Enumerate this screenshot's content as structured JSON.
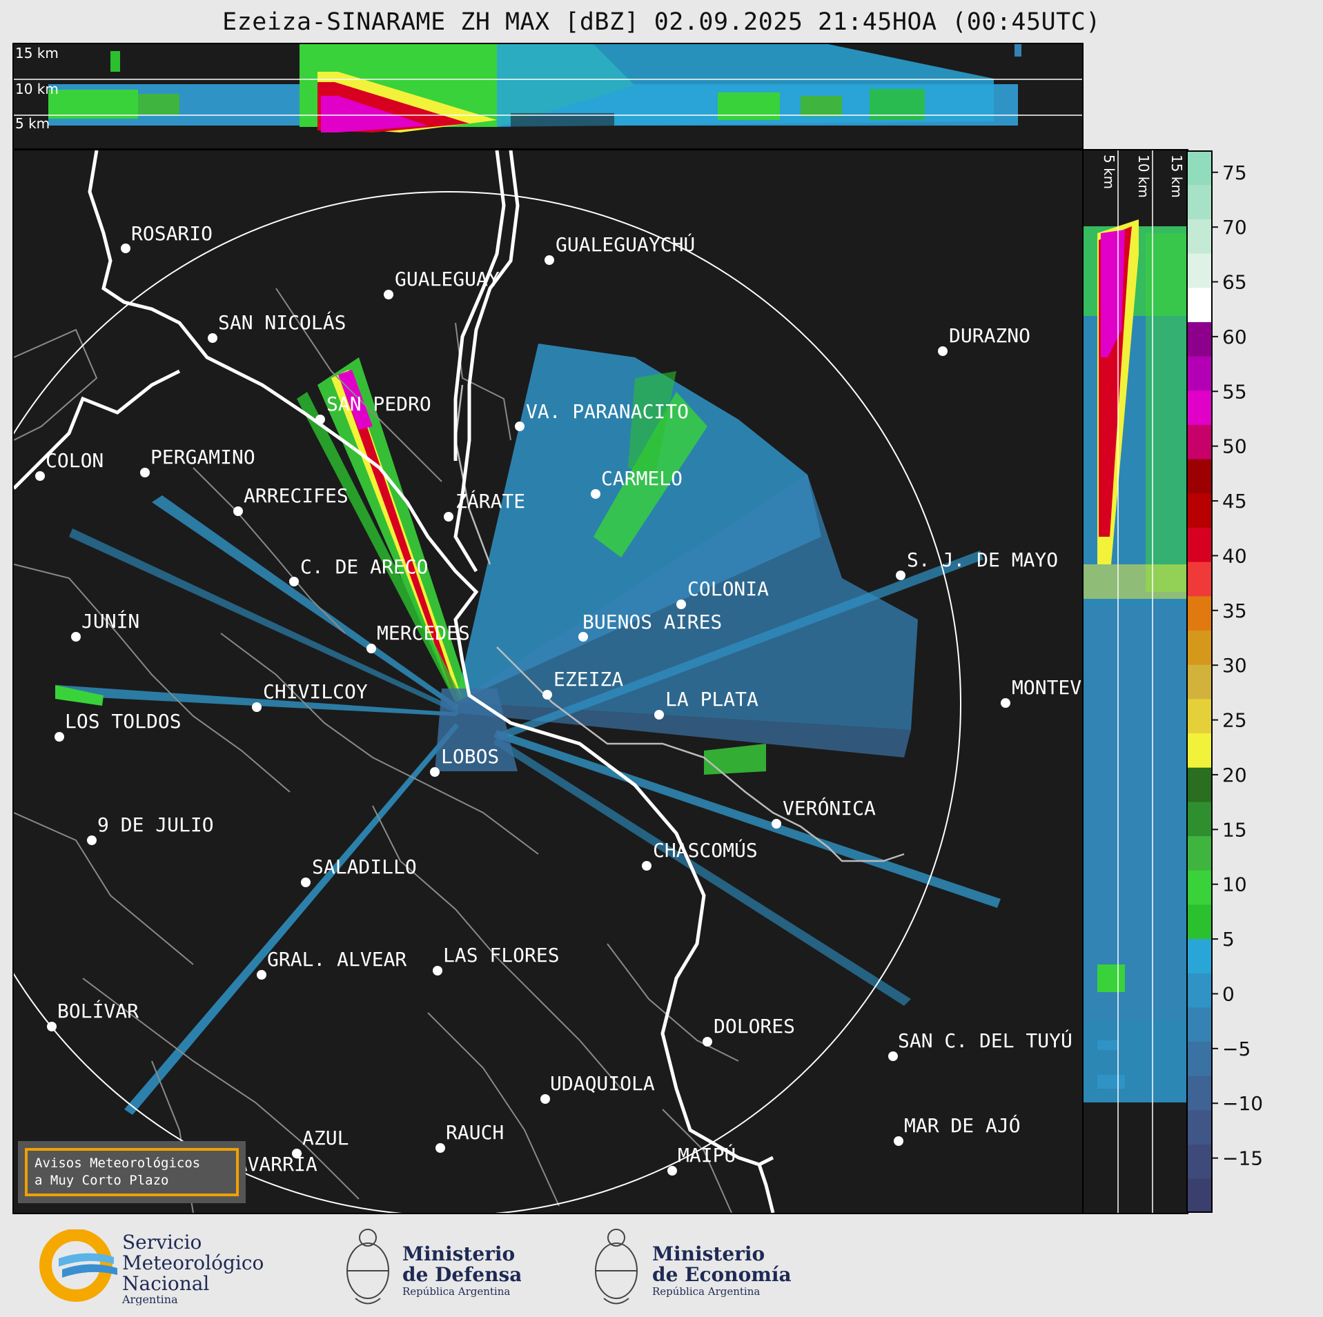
{
  "title": "Ezeiza-SINARAME ZH MAX [dBZ] 02.09.2025 21:45HOA (00:45UTC)",
  "top_altitudes": [
    "15 km",
    "10 km",
    "5 km"
  ],
  "side_altitudes": [
    "5 km",
    "10 km",
    "15 km"
  ],
  "colorbar": {
    "ticks": [
      "75",
      "70",
      "65",
      "60",
      "55",
      "50",
      "45",
      "40",
      "35",
      "30",
      "25",
      "20",
      "15",
      "10",
      "5",
      "0",
      "−5",
      "−10",
      "−15"
    ],
    "tick_values": [
      75,
      70,
      65,
      60,
      55,
      50,
      45,
      40,
      35,
      30,
      25,
      20,
      15,
      10,
      5,
      0,
      -5,
      -10,
      -15
    ],
    "min": -20,
    "max": 77,
    "colors": [
      "#3a3f6e",
      "#3d4a7a",
      "#3f5686",
      "#3e6394",
      "#3a72a3",
      "#3582b4",
      "#2f93c6",
      "#29a6d8",
      "#2bc02e",
      "#3ad23a",
      "#3fb53f",
      "#2f8f2f",
      "#2a6e1f",
      "#f2f23a",
      "#e6d03a",
      "#d2b23a",
      "#d6981a",
      "#e07a10",
      "#f03a3a",
      "#d80020",
      "#b80000",
      "#9c0000",
      "#c8006a",
      "#e000c8",
      "#b400b4",
      "#8c008c",
      "#ffffff",
      "#dff2e6",
      "#c4ead6",
      "#a8e2c6",
      "#90dcbc"
    ]
  },
  "cities": [
    {
      "name": "ROSARIO"
    },
    {
      "name": "GUALEGUAYCHÚ"
    },
    {
      "name": "GUALEGUAY"
    },
    {
      "name": "SAN NICOLÁS"
    },
    {
      "name": "DURAZNO"
    },
    {
      "name": "SAN PEDRO"
    },
    {
      "name": "VA. PARANACITO"
    },
    {
      "name": "COLON"
    },
    {
      "name": "PERGAMINO"
    },
    {
      "name": "CARMELO"
    },
    {
      "name": "ARRECIFES"
    },
    {
      "name": "ZÁRATE"
    },
    {
      "name": "S. J. DE MAYO"
    },
    {
      "name": "C. DE ARECO"
    },
    {
      "name": "COLONIA"
    },
    {
      "name": "BUENOS AIRES"
    },
    {
      "name": "JUNÍN"
    },
    {
      "name": "MERCEDES"
    },
    {
      "name": "EZEIZA"
    },
    {
      "name": "MONTEV"
    },
    {
      "name": "CHIVILCOY"
    },
    {
      "name": "LA PLATA"
    },
    {
      "name": "LOS TOLDOS"
    },
    {
      "name": "LOBOS"
    },
    {
      "name": "VERÓNICA"
    },
    {
      "name": "9 DE JULIO"
    },
    {
      "name": "CHASCOMÚS"
    },
    {
      "name": "SALADILLO"
    },
    {
      "name": "GRAL. ALVEAR"
    },
    {
      "name": "LAS FLORES"
    },
    {
      "name": "BOLÍVAR"
    },
    {
      "name": "DOLORES"
    },
    {
      "name": "SAN C. DEL TUYÚ"
    },
    {
      "name": "UDAQUIOLA"
    },
    {
      "name": "MAR DE AJÓ"
    },
    {
      "name": "AZUL"
    },
    {
      "name": "RAUCH"
    },
    {
      "name": "MAIPÚ"
    },
    {
      "name": "OLAVARRÍA"
    }
  ],
  "warning_box": {
    "line1": "Avisos Meteorológicos",
    "line2": "a Muy Corto Plazo",
    "border_color": "#f0a000"
  },
  "logos": {
    "smn": {
      "line1": "Servicio",
      "line2": "Meteorológico",
      "line3": "Nacional",
      "line4": "Argentina"
    },
    "defensa": {
      "line1": "Ministerio",
      "line2": "de Defensa",
      "line3": "República Argentina"
    },
    "economia": {
      "line1": "Ministerio",
      "line2": "de Economía",
      "line3": "República Argentina"
    }
  }
}
